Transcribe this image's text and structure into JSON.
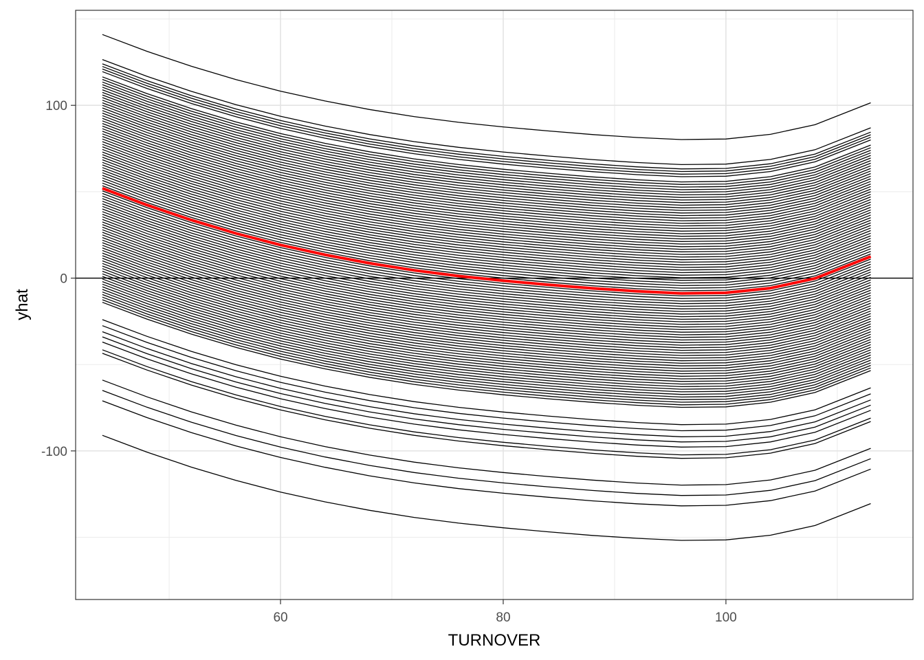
{
  "chart_data": {
    "type": "line",
    "title": "",
    "xlabel": "TURNOVER",
    "ylabel": "yhat",
    "xlim": [
      41.6,
      116.8
    ],
    "ylim": [
      -186,
      155
    ],
    "x_ticks": [
      60,
      80,
      100
    ],
    "x_tick_labels": [
      "60",
      "80",
      "100"
    ],
    "y_ticks": [
      -100,
      0,
      100
    ],
    "y_tick_labels": [
      "-100",
      "0",
      "100"
    ],
    "x_minor_gridlines": [
      50,
      70,
      90,
      110
    ],
    "y_minor_gridlines": [
      -150,
      -50,
      50,
      150
    ],
    "grid": true,
    "reference_line_y": 0,
    "x": [
      44,
      48,
      52,
      56,
      60,
      64,
      68,
      72,
      76,
      80,
      84,
      88,
      92,
      96,
      100,
      104,
      108,
      113
    ],
    "shape": [
      0,
      -9.7,
      -18.4,
      -26.1,
      -32.8,
      -38.5,
      -43.4,
      -47.5,
      -50.8,
      -53.5,
      -55.8,
      -57.9,
      -59.6,
      -60.8,
      -60.5,
      -57.8,
      -52.2,
      -39.5
    ],
    "series": [
      {
        "offset": 52,
        "color": "#ff0000",
        "role": "average",
        "values": [
          52,
          42.3,
          33.6,
          25.9,
          19.2,
          13.5,
          8.6,
          4.5,
          1.2,
          -1.5,
          -3.8,
          -5.9,
          -7.6,
          -8.8,
          -8.5,
          -5.8,
          -0.2,
          12.5
        ]
      }
    ],
    "ice_offsets": [
      141,
      126.5,
      124,
      122.5,
      121,
      119.5,
      116.5,
      115,
      113.5,
      112,
      110.5,
      109,
      107.5,
      106,
      104.5,
      103,
      101.5,
      100,
      98.5,
      97,
      95.5,
      94,
      92.5,
      91,
      89.5,
      88,
      86.5,
      85,
      83.5,
      82,
      80.5,
      79,
      77.5,
      76,
      74.5,
      73,
      71.5,
      70,
      68.5,
      67,
      65.5,
      64,
      62.5,
      61,
      59.5,
      58,
      56.5,
      55,
      53.5,
      52,
      50.5,
      49,
      47.5,
      46,
      44.5,
      43,
      41.5,
      40,
      38.5,
      37,
      35.5,
      34,
      32.5,
      31,
      29.5,
      28,
      26.5,
      25,
      23.5,
      22,
      20.5,
      19,
      17.5,
      16,
      14.5,
      13,
      11.5,
      10,
      8.5,
      7,
      5.5,
      4,
      2.5,
      1,
      -0.5,
      -2,
      -3.5,
      -5,
      -6.5,
      -8,
      -9.5,
      -11,
      -12.5,
      -14,
      -24,
      -27.5,
      -31,
      -34,
      -37,
      -41.5,
      -43.5,
      -59,
      -65,
      -71,
      -91
    ],
    "ice_line_color": "#000000"
  }
}
